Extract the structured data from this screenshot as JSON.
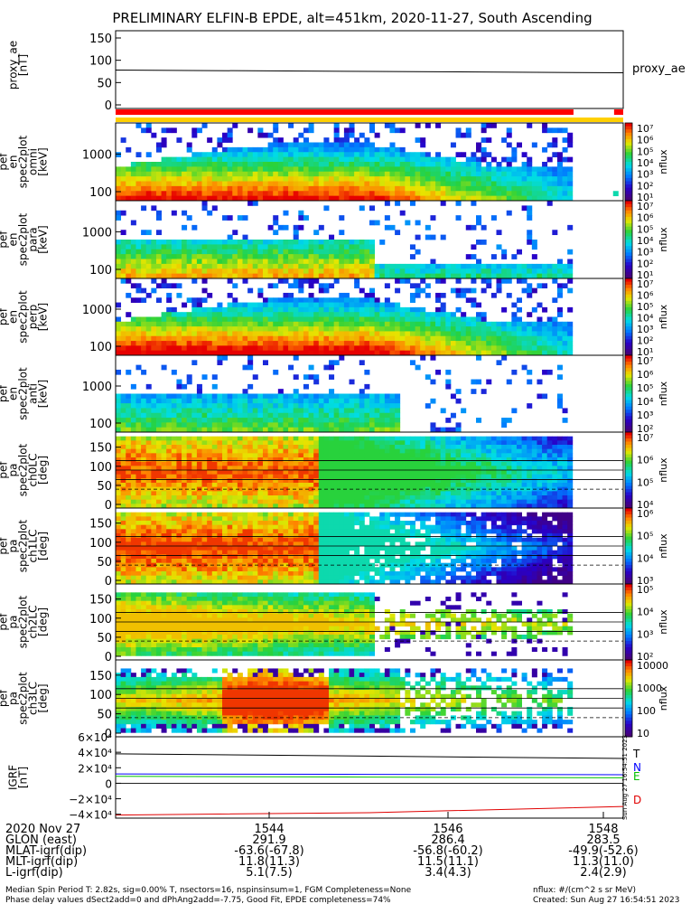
{
  "title": "PRELIMINARY ELFIN-B EPDE, alt=451km, 2020-11-27, South Ascending",
  "chart_data": [
    {
      "type": "line",
      "panel": "proxy_ae",
      "ylabel_lines": [
        "proxy_ae",
        "[nT]"
      ],
      "legend": "proxy_ae",
      "yticks": [
        "150",
        "100",
        "50",
        "0"
      ],
      "ylim": [
        0,
        150
      ],
      "series": [
        {
          "values": [
            78,
            75,
            72
          ]
        }
      ]
    },
    {
      "type": "bar",
      "panel": "science-zone-bars",
      "bars": [
        {
          "color": "#ff0000",
          "from": 0.0,
          "to": 0.9
        }
      ]
    },
    {
      "type": "heatmap",
      "panel": "spec2plot_omni",
      "ylabel_lines": [
        "elb",
        "pef",
        "en",
        "spec2plot",
        "omni",
        "[keV]"
      ],
      "yticks": [
        "1000",
        "100"
      ],
      "cbar_label": "nflux",
      "cbar_ticks": [
        "10⁷",
        "10⁶",
        "10⁵",
        "10⁴",
        "10³",
        "10²",
        "10¹"
      ]
    },
    {
      "type": "heatmap",
      "panel": "spec2plot_para",
      "ylabel_lines": [
        "elb",
        "pef",
        "en",
        "spec2plot",
        "para",
        "[keV]"
      ],
      "yticks": [
        "1000",
        "100"
      ],
      "cbar_label": "nflux",
      "cbar_ticks": [
        "10⁷",
        "10⁶",
        "10⁵",
        "10⁴",
        "10³",
        "10²",
        "10¹"
      ]
    },
    {
      "type": "heatmap",
      "panel": "spec2plot_perp",
      "ylabel_lines": [
        "elb",
        "pef",
        "en",
        "spec2plot",
        "perp",
        "[keV]"
      ],
      "yticks": [
        "1000",
        "100"
      ],
      "cbar_label": "nflux",
      "cbar_ticks": [
        "10⁷",
        "10⁶",
        "10⁵",
        "10⁴",
        "10³",
        "10²",
        "10¹"
      ]
    },
    {
      "type": "heatmap",
      "panel": "spec2plot_anti",
      "ylabel_lines": [
        "elb",
        "pef",
        "en",
        "spec2plot",
        "anti",
        "[keV]"
      ],
      "yticks": [
        "1000",
        "100"
      ],
      "cbar_label": "nflux",
      "cbar_ticks": [
        "10⁷",
        "10⁶",
        "10⁵",
        "10⁴",
        "10³",
        "10²"
      ]
    },
    {
      "type": "heatmap",
      "panel": "spec2plot_ch0LC",
      "ylabel_lines": [
        "elb",
        "pef",
        "pa",
        "spec2plot",
        "ch0LC",
        "[deg]"
      ],
      "yticks": [
        "150",
        "100",
        "50",
        "0"
      ],
      "ylim": [
        0,
        180
      ],
      "cbar_label": "nflux",
      "cbar_ticks": [
        "10⁷",
        "10⁶",
        "10⁵",
        "10⁴"
      ]
    },
    {
      "type": "heatmap",
      "panel": "spec2plot_ch1LC",
      "ylabel_lines": [
        "elb",
        "pef",
        "pa",
        "spec2plot",
        "ch1LC",
        "[deg]"
      ],
      "yticks": [
        "150",
        "100",
        "50",
        "0"
      ],
      "ylim": [
        0,
        180
      ],
      "cbar_label": "nflux",
      "cbar_ticks": [
        "10⁶",
        "10⁵",
        "10⁴",
        "10³"
      ]
    },
    {
      "type": "heatmap",
      "panel": "spec2plot_ch2LC",
      "ylabel_lines": [
        "elb",
        "pef",
        "pa",
        "spec2plot",
        "ch2LC",
        "[deg]"
      ],
      "yticks": [
        "150",
        "100",
        "50",
        "0"
      ],
      "ylim": [
        0,
        180
      ],
      "cbar_label": "nflux",
      "cbar_ticks": [
        "10⁵",
        "10⁴",
        "10³",
        "10²"
      ]
    },
    {
      "type": "heatmap",
      "panel": "spec2plot_ch3LC",
      "ylabel_lines": [
        "elb",
        "pef",
        "pa",
        "spec2plot",
        "ch3LC",
        "[deg]"
      ],
      "yticks": [
        "150",
        "100",
        "50",
        "0"
      ],
      "ylim": [
        0,
        180
      ],
      "cbar_label": "nflux",
      "cbar_ticks": [
        "10000",
        "1000",
        "100",
        "10"
      ]
    },
    {
      "type": "line",
      "panel": "IGRF",
      "ylabel_lines": [
        "IGRF",
        "[nT]"
      ],
      "yticks": [
        "6×10⁴",
        "4×10⁴",
        "2×10⁴",
        "0",
        "−2×10⁴",
        "−4×10⁴"
      ],
      "ylim": [
        -45000,
        60000
      ],
      "legend": [
        "T",
        "N",
        "E",
        "D"
      ],
      "series": [
        {
          "name": "T",
          "color": "#000000",
          "values": [
            38000,
            35000,
            32000
          ]
        },
        {
          "name": "N",
          "color": "#0000ff",
          "values": [
            12000,
            11500,
            11000
          ]
        },
        {
          "name": "E",
          "color": "#00c000",
          "values": [
            9000,
            8000,
            7000
          ]
        },
        {
          "name": "D",
          "color": "#e00000",
          "values": [
            -41000,
            -38000,
            -30000
          ]
        }
      ],
      "side_stamp": "Sun Aug 27 16:54:51 2023"
    }
  ],
  "x_axis": {
    "date": "2020 Nov 27",
    "rows": [
      {
        "label": "",
        "values": [
          "1544",
          "1546",
          "1548"
        ]
      },
      {
        "label": "GLON (east)",
        "values": [
          "291.9",
          "286.4",
          "283.5"
        ]
      },
      {
        "label": "MLAT-igrf(dip)",
        "values": [
          "-63.6(-67.8)",
          "-56.8(-60.2)",
          "-49.9(-52.6)"
        ]
      },
      {
        "label": "MLT-igrf(dip)",
        "values": [
          "11.8(11.3)",
          "11.5(11.1)",
          "11.3(11.0)"
        ]
      },
      {
        "label": "L-igrf(dip)",
        "values": [
          "5.1(7.5)",
          "3.4(4.3)",
          "2.4(2.9)"
        ]
      }
    ]
  },
  "footer": {
    "line1": "Median Spin Period T: 2.82s, sig=0.00% T, nsectors=16, nspinsinsum=1, FGM Completeness=None",
    "line2": "Phase delay values dSect2add=0 and dPhAng2add=-7.75, Good Fit, EPDE completeness=74%",
    "right1": "nflux: #/(cm^2 s sr MeV)",
    "right2": "Created: Sun Aug 27 16:54:51 2023"
  }
}
